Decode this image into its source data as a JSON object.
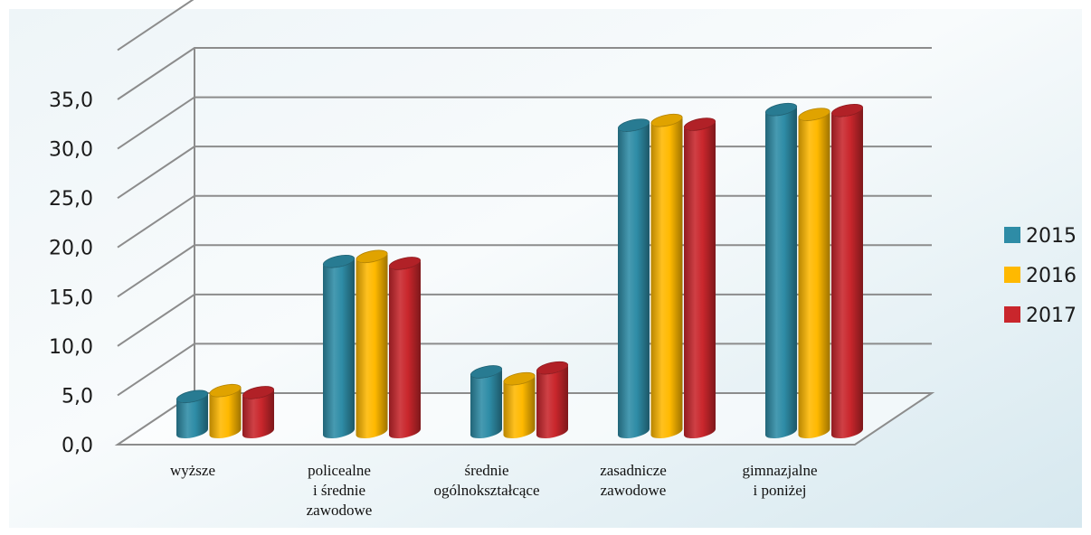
{
  "chart_data": {
    "type": "bar",
    "title": "",
    "xlabel": "",
    "ylabel": "",
    "ylim": [
      0,
      35
    ],
    "yticks": [
      "0,0",
      "5,0",
      "10,0",
      "15,0",
      "20,0",
      "25,0",
      "30,0",
      "35,0"
    ],
    "categories": [
      [
        "wyższe"
      ],
      [
        "policealne",
        "i średnie",
        "zawodowe"
      ],
      [
        "średnie",
        "ogólnokształcące"
      ],
      [
        "zasadnicze",
        "zawodowe"
      ],
      [
        "gimnazjalne",
        "i poniżej"
      ]
    ],
    "series": [
      {
        "name": "2015",
        "color": "#2E8CA6",
        "values": [
          5.7,
          19.4,
          8.2,
          33.2,
          34.8
        ]
      },
      {
        "name": "2016",
        "color": "#FFB900",
        "values": [
          6.3,
          19.9,
          7.5,
          33.7,
          34.3
        ]
      },
      {
        "name": "2017",
        "color": "#C9262C",
        "values": [
          6.1,
          19.2,
          8.6,
          33.3,
          34.7
        ]
      }
    ],
    "grid": true,
    "legend": "right",
    "style": "3d-cylinder"
  }
}
